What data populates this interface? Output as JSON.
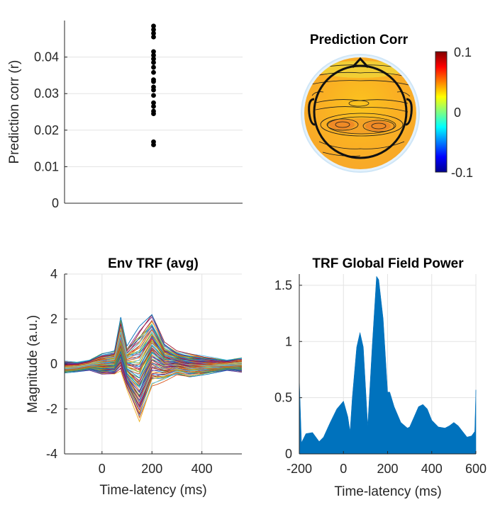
{
  "colors": {
    "axis": "#262626",
    "grid": "#e3e3e3",
    "gfp_fill": "#0072bd",
    "dots": "#000000"
  },
  "chart_data": [
    {
      "id": "pred-corr-scatter",
      "type": "scatter",
      "title": "",
      "xlabel": "",
      "ylabel": "Prediction corr (r)",
      "ylim": [
        0,
        0.05
      ],
      "yticks": [
        0,
        0.01,
        0.02,
        0.03,
        0.04
      ],
      "ytick_labels": [
        "0",
        "0.01",
        "0.02",
        "0.03",
        "0.04"
      ],
      "grid": true,
      "x": [
        1,
        1,
        1,
        1,
        1,
        1,
        1,
        1,
        1,
        1,
        1,
        1,
        1,
        1,
        1,
        1,
        1,
        1,
        1,
        1,
        1
      ],
      "y": [
        0.0485,
        0.0475,
        0.0465,
        0.0455,
        0.0415,
        0.0405,
        0.0395,
        0.0385,
        0.0372,
        0.0358,
        0.0338,
        0.0333,
        0.0318,
        0.031,
        0.0295,
        0.0275,
        0.0265,
        0.0252,
        0.0245,
        0.0168,
        0.016
      ]
    },
    {
      "id": "pred-corr-topo",
      "type": "heatmap",
      "title": "Prediction Corr",
      "colorbar": {
        "min": -0.1,
        "max": 0.1,
        "ticks": [
          "0.1",
          "0",
          "-0.1"
        ]
      }
    },
    {
      "id": "env-trf",
      "type": "line",
      "title": "Env TRF (avg)",
      "xlabel": "Time-latency (ms)",
      "ylabel": "Magnitude (a.u.)",
      "xlim": [
        -150,
        560
      ],
      "ylim": [
        -4,
        4
      ],
      "xticks": [
        0,
        200,
        400
      ],
      "xtick_labels": [
        "0",
        "200",
        "400"
      ],
      "yticks": [
        -4,
        -2,
        0,
        2,
        4
      ],
      "ytick_labels": [
        "-4",
        "-2",
        "0",
        "2",
        "4"
      ],
      "grid": true,
      "channel_count": 64,
      "envelope": {
        "x": [
          -150,
          -100,
          -50,
          0,
          50,
          75,
          100,
          150,
          200,
          250,
          300,
          350,
          400,
          450,
          500,
          560
        ],
        "upper": [
          0.15,
          0.1,
          0.2,
          0.5,
          0.6,
          2.1,
          0.8,
          1.7,
          2.3,
          1.0,
          0.6,
          0.5,
          0.4,
          0.3,
          0.2,
          0.3
        ],
        "lower": [
          -0.4,
          -0.35,
          -0.3,
          -0.5,
          -0.5,
          -0.4,
          -1.2,
          -2.7,
          -1.1,
          -0.8,
          -0.5,
          -0.6,
          -0.5,
          -0.4,
          -0.3,
          -0.4
        ]
      }
    },
    {
      "id": "trf-gfp",
      "type": "area",
      "title": "TRF Global Field Power",
      "xlabel": "Time-latency (ms)",
      "ylabel": "",
      "xlim": [
        -200,
        600
      ],
      "ylim": [
        0,
        1.6
      ],
      "xticks": [
        -200,
        0,
        200,
        400,
        600
      ],
      "xtick_labels": [
        "-200",
        "0",
        "200",
        "400",
        "600"
      ],
      "yticks": [
        0,
        0.5,
        1,
        1.5
      ],
      "ytick_labels": [
        "0",
        "0.5",
        "1",
        "1.5"
      ],
      "grid": true,
      "x": [
        -200,
        -190,
        -170,
        -140,
        -110,
        -90,
        -60,
        -30,
        0,
        20,
        30,
        40,
        60,
        75,
        90,
        100,
        110,
        130,
        150,
        160,
        180,
        200,
        210,
        230,
        260,
        290,
        300,
        320,
        340,
        360,
        380,
        400,
        430,
        460,
        480,
        500,
        520,
        540,
        560,
        580,
        595,
        600
      ],
      "y": [
        0.68,
        0.1,
        0.18,
        0.19,
        0.11,
        0.15,
        0.28,
        0.4,
        0.47,
        0.33,
        0.2,
        0.5,
        0.95,
        1.08,
        0.95,
        0.6,
        0.25,
        0.95,
        1.58,
        1.55,
        1.2,
        0.55,
        0.55,
        0.42,
        0.28,
        0.23,
        0.24,
        0.33,
        0.42,
        0.44,
        0.4,
        0.3,
        0.24,
        0.23,
        0.25,
        0.28,
        0.25,
        0.2,
        0.15,
        0.16,
        0.2,
        0.57
      ]
    }
  ]
}
